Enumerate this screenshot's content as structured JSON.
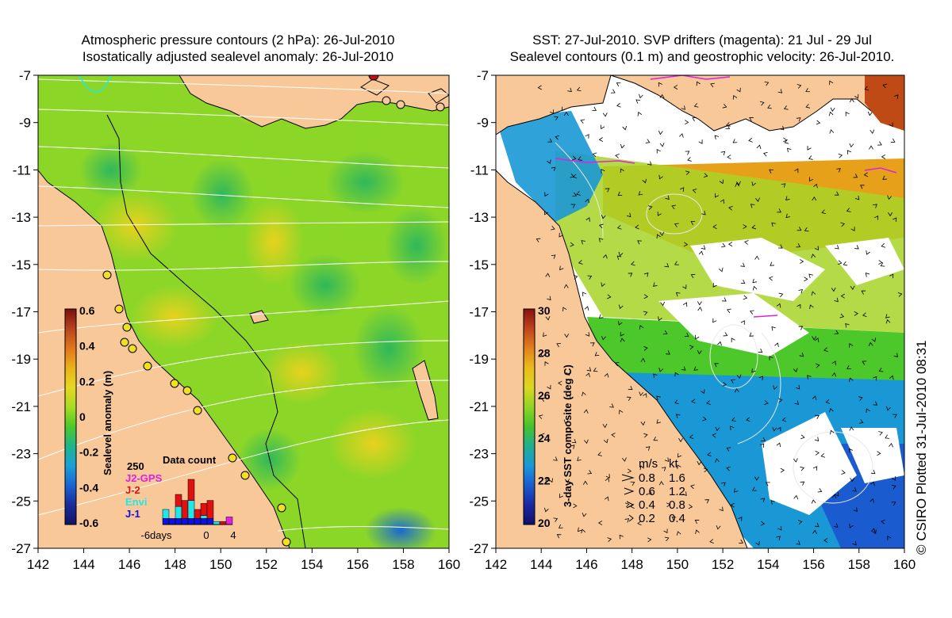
{
  "left_panel": {
    "title_line1": "Atmospheric pressure contours (2 hPa): 26-Jul-2010",
    "title_line2": "Isostatically adjusted sealevel anomaly: 26-Jul-2010",
    "colorbar": {
      "label": "Sealevel anomaly (m)",
      "ticks": [
        "0.6",
        "0.4",
        "0.2",
        "0",
        "-0.2",
        "-0.4",
        "-0.6"
      ],
      "colors": [
        "#7a0f0f",
        "#b8431c",
        "#e1761d",
        "#eab21a",
        "#e5d820",
        "#a8dc22",
        "#4cc82a",
        "#1fb58a",
        "#1aa0d6",
        "#1a63d2",
        "#1a2c9a",
        "#111466"
      ]
    },
    "data_count": {
      "title": "Data count",
      "max_label": "250",
      "legend": [
        {
          "label": "J2-GPS",
          "color": "#e020e0"
        },
        {
          "label": "J-2",
          "color": "#e01010"
        },
        {
          "label": "Envi",
          "color": "#20e8e8"
        },
        {
          "label": "J-1",
          "color": "#1010e0"
        }
      ],
      "axis_labels": [
        "-6days",
        "0",
        "4"
      ],
      "bars": [
        {
          "J-1": 20,
          "Envi": 30,
          "J-2": 0,
          "J2-GPS": 0
        },
        {
          "J-1": 20,
          "Envi": 0,
          "J-2": 0,
          "J2-GPS": 0
        },
        {
          "J-1": 20,
          "Envi": 40,
          "J-2": 40,
          "J2-GPS": 0
        },
        {
          "J-1": 20,
          "Envi": 0,
          "J-2": 60,
          "J2-GPS": 0
        },
        {
          "J-1": 20,
          "Envi": 60,
          "J-2": 70,
          "J2-GPS": 0
        },
        {
          "J-1": 20,
          "Envi": 0,
          "J-2": 30,
          "J2-GPS": 0
        },
        {
          "J-1": 20,
          "Envi": 10,
          "J-2": 40,
          "J2-GPS": 0
        },
        {
          "J-1": 20,
          "Envi": 0,
          "J-2": 60,
          "J2-GPS": 0
        },
        {
          "J-1": 0,
          "Envi": 10,
          "J-2": 0,
          "J2-GPS": 0
        },
        {
          "J-1": 0,
          "Envi": 0,
          "J-2": 10,
          "J2-GPS": 0
        },
        {
          "J-1": 0,
          "Envi": 0,
          "J-2": 0,
          "J2-GPS": 25
        }
      ]
    }
  },
  "right_panel": {
    "title_line1": "SST: 27-Jul-2010. SVP drifters (magenta): 21 Jul - 29 Jul",
    "title_line2": "Sealevel contours (0.1 m) and geostrophic velocity: 26-Jul-2010.",
    "colorbar": {
      "label": "3-day SST composite (deg C)",
      "ticks": [
        "30",
        "28",
        "26",
        "24",
        "22",
        "20"
      ],
      "colors": [
        "#8a1010",
        "#c0441c",
        "#e1801d",
        "#eabb1a",
        "#d9d820",
        "#90d424",
        "#46c22c",
        "#20ae90",
        "#1a98d6",
        "#1a5cd0",
        "#1a28a0",
        "#10106a"
      ]
    },
    "velocity_legend": {
      "header_ms": "m/s",
      "header_kt": "kt",
      "rows": [
        {
          "ms": "0.8",
          "kt": "1.6"
        },
        {
          "ms": "0.6",
          "kt": "1.2"
        },
        {
          "ms": "0.4",
          "kt": "0.8"
        },
        {
          "ms": "0.2",
          "kt": "0.4"
        }
      ]
    }
  },
  "axes": {
    "lon_ticks": [
      "142",
      "144",
      "146",
      "148",
      "150",
      "152",
      "154",
      "156",
      "158",
      "160"
    ],
    "lat_ticks": [
      "-7",
      "-9",
      "-11",
      "-13",
      "-15",
      "-17",
      "-19",
      "-21",
      "-23",
      "-25",
      "-27"
    ],
    "lon_range": [
      142,
      160
    ],
    "lat_range": [
      -27,
      -7
    ]
  },
  "credit": "© CSIRO Plotted 31-Jul-2010 08:31",
  "colors": {
    "land": "#f8c898",
    "sea_green": "#8cd628",
    "white_cloud": "#ffffff"
  }
}
